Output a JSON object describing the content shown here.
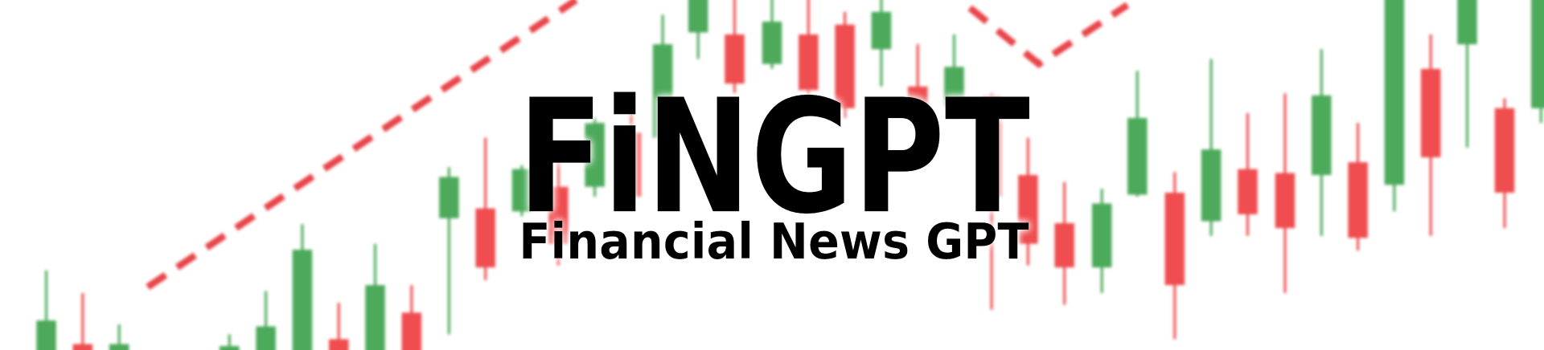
{
  "title": "FiNGPT",
  "subtitle": "Financial News GPT"
}
